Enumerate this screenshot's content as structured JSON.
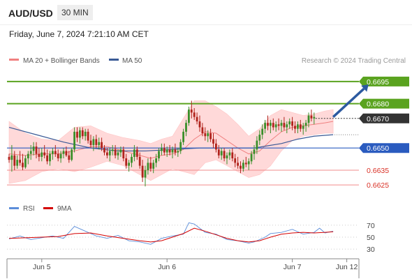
{
  "header": {
    "symbol": "AUD/USD",
    "timeframe": "30 MIN",
    "datetime": "Friday, June 7, 2024 7:21:10 AM CET",
    "credit": "Research © 2024 Trading Central"
  },
  "colors": {
    "resistance": "#5aa31f",
    "support": "#2a5bbf",
    "minor_support": "#f28b8b",
    "minor_support_text": "#d93025",
    "candle_bull": "#3a8f2a",
    "candle_bear": "#b0231c",
    "bollinger_fill": "#ffd9d9",
    "ma20": "#f08080",
    "ma50": "#3a5a96",
    "rsi": "#5b8dd9",
    "rsi_ma": "#d40000",
    "arrow": "#2c5aa0",
    "last_box": "#333333"
  },
  "chart_data": {
    "type": "candlestick",
    "legend": [
      "MA 20 + Bollinger Bands",
      "MA 50"
    ],
    "ylim": [
      0.6618,
      0.6702
    ],
    "last_price": 0.667,
    "levels": [
      {
        "value": 0.6695,
        "label": "0.6695",
        "kind": "resistance"
      },
      {
        "value": 0.668,
        "label": "0.6680",
        "kind": "resistance"
      },
      {
        "value": 0.665,
        "label": "0.6650",
        "kind": "support"
      },
      {
        "value": 0.6635,
        "label": "0.6635",
        "kind": "minor-support"
      },
      {
        "value": 0.6625,
        "label": "0.6625",
        "kind": "minor-support"
      }
    ],
    "last_label": "0.6670",
    "x_ticks": [
      "Jun 5",
      "Jun 6",
      "Jun 7",
      "Jun 12"
    ],
    "x_tick_index": [
      12,
      58,
      104,
      124
    ],
    "forecast_arrow": {
      "from_index": 119,
      "from": 0.6671,
      "to_index": 132,
      "to": 0.6693
    },
    "candles": [
      [
        0.6644,
        0.6646,
        0.664,
        0.6642
      ],
      [
        0.6642,
        0.6652,
        0.6634,
        0.6645
      ],
      [
        0.6645,
        0.6648,
        0.6635,
        0.6638
      ],
      [
        0.6638,
        0.6645,
        0.6636,
        0.6642
      ],
      [
        0.6642,
        0.6648,
        0.6638,
        0.664
      ],
      [
        0.664,
        0.6646,
        0.6635,
        0.6637
      ],
      [
        0.6637,
        0.6645,
        0.6636,
        0.6643
      ],
      [
        0.6643,
        0.6648,
        0.6639,
        0.6646
      ],
      [
        0.6646,
        0.6652,
        0.6642,
        0.6648
      ],
      [
        0.6648,
        0.6654,
        0.6645,
        0.6651
      ],
      [
        0.6651,
        0.6654,
        0.6643,
        0.6646
      ],
      [
        0.6646,
        0.665,
        0.6641,
        0.6644
      ],
      [
        0.6644,
        0.665,
        0.6641,
        0.6647
      ],
      [
        0.6647,
        0.6652,
        0.6643,
        0.6645
      ],
      [
        0.6645,
        0.6649,
        0.6639,
        0.6641
      ],
      [
        0.6641,
        0.6648,
        0.6638,
        0.6646
      ],
      [
        0.6646,
        0.665,
        0.6642,
        0.6648
      ],
      [
        0.6648,
        0.6652,
        0.6644,
        0.6646
      ],
      [
        0.6646,
        0.6649,
        0.6641,
        0.6643
      ],
      [
        0.6643,
        0.6648,
        0.664,
        0.6646
      ],
      [
        0.6646,
        0.665,
        0.6643,
        0.6648
      ],
      [
        0.6648,
        0.6651,
        0.6644,
        0.6645
      ],
      [
        0.6645,
        0.6648,
        0.664,
        0.6642
      ],
      [
        0.6642,
        0.665,
        0.6641,
        0.6649
      ],
      [
        0.6649,
        0.6664,
        0.6647,
        0.6661
      ],
      [
        0.6661,
        0.6664,
        0.6654,
        0.6657
      ],
      [
        0.6657,
        0.6664,
        0.6653,
        0.6662
      ],
      [
        0.6662,
        0.6664,
        0.6656,
        0.6658
      ],
      [
        0.6658,
        0.6663,
        0.6655,
        0.6661
      ],
      [
        0.6661,
        0.6663,
        0.6653,
        0.6655
      ],
      [
        0.6655,
        0.6659,
        0.665,
        0.6652
      ],
      [
        0.6652,
        0.6658,
        0.6648,
        0.6656
      ],
      [
        0.6656,
        0.6659,
        0.665,
        0.6652
      ],
      [
        0.6652,
        0.6657,
        0.6649,
        0.6654
      ],
      [
        0.6654,
        0.6657,
        0.6648,
        0.665
      ],
      [
        0.665,
        0.6652,
        0.6645,
        0.6647
      ],
      [
        0.6647,
        0.665,
        0.6643,
        0.6645
      ],
      [
        0.6645,
        0.665,
        0.6641,
        0.6648
      ],
      [
        0.6648,
        0.6652,
        0.6645,
        0.6649
      ],
      [
        0.6649,
        0.6652,
        0.6643,
        0.6645
      ],
      [
        0.6645,
        0.6649,
        0.6642,
        0.6647
      ],
      [
        0.6647,
        0.6651,
        0.6644,
        0.6649
      ],
      [
        0.6649,
        0.6651,
        0.6641,
        0.6643
      ],
      [
        0.6643,
        0.6646,
        0.6636,
        0.6638
      ],
      [
        0.6638,
        0.6642,
        0.6634,
        0.664
      ],
      [
        0.664,
        0.6646,
        0.6637,
        0.6644
      ],
      [
        0.6644,
        0.6652,
        0.6641,
        0.6649
      ],
      [
        0.6649,
        0.6651,
        0.6642,
        0.6644
      ],
      [
        0.6644,
        0.6647,
        0.6636,
        0.6638
      ],
      [
        0.6638,
        0.6642,
        0.6627,
        0.663
      ],
      [
        0.663,
        0.6638,
        0.6624,
        0.6635
      ],
      [
        0.6635,
        0.6643,
        0.6632,
        0.664
      ],
      [
        0.664,
        0.6644,
        0.6634,
        0.6636
      ],
      [
        0.6636,
        0.6642,
        0.6633,
        0.664
      ],
      [
        0.664,
        0.6646,
        0.6637,
        0.6643
      ],
      [
        0.6643,
        0.665,
        0.6641,
        0.6648
      ],
      [
        0.6648,
        0.6653,
        0.6645,
        0.665
      ],
      [
        0.665,
        0.6653,
        0.6645,
        0.6647
      ],
      [
        0.6647,
        0.6651,
        0.6644,
        0.6649
      ],
      [
        0.6649,
        0.6652,
        0.6645,
        0.6647
      ],
      [
        0.6647,
        0.6651,
        0.6643,
        0.6649
      ],
      [
        0.6649,
        0.6653,
        0.6645,
        0.6647
      ],
      [
        0.6647,
        0.665,
        0.6644,
        0.6648
      ],
      [
        0.6648,
        0.6656,
        0.6646,
        0.6654
      ],
      [
        0.6654,
        0.6663,
        0.6652,
        0.6661
      ],
      [
        0.6661,
        0.6669,
        0.6658,
        0.6667
      ],
      [
        0.6667,
        0.6678,
        0.6665,
        0.6676
      ],
      [
        0.6676,
        0.6682,
        0.667,
        0.6674
      ],
      [
        0.6674,
        0.6677,
        0.6669,
        0.6671
      ],
      [
        0.6671,
        0.6674,
        0.6666,
        0.6668
      ],
      [
        0.6668,
        0.6672,
        0.6661,
        0.6664
      ],
      [
        0.6664,
        0.6667,
        0.6658,
        0.666
      ],
      [
        0.666,
        0.6664,
        0.6655,
        0.6658
      ],
      [
        0.6658,
        0.6662,
        0.6654,
        0.666
      ],
      [
        0.666,
        0.6663,
        0.6654,
        0.6656
      ],
      [
        0.6656,
        0.666,
        0.665,
        0.6653
      ],
      [
        0.6653,
        0.6656,
        0.6647,
        0.6649
      ],
      [
        0.6649,
        0.6652,
        0.6643,
        0.6645
      ],
      [
        0.6645,
        0.665,
        0.6642,
        0.6648
      ],
      [
        0.6648,
        0.665,
        0.6641,
        0.6643
      ],
      [
        0.6643,
        0.6647,
        0.6639,
        0.6645
      ],
      [
        0.6645,
        0.6649,
        0.6642,
        0.6647
      ],
      [
        0.6647,
        0.665,
        0.6641,
        0.6643
      ],
      [
        0.6643,
        0.6646,
        0.6637,
        0.664
      ],
      [
        0.664,
        0.6644,
        0.6636,
        0.6638
      ],
      [
        0.6638,
        0.6641,
        0.6633,
        0.6636
      ],
      [
        0.6636,
        0.6642,
        0.6634,
        0.664
      ],
      [
        0.664,
        0.6644,
        0.6637,
        0.6639
      ],
      [
        0.6639,
        0.6643,
        0.6635,
        0.6641
      ],
      [
        0.6641,
        0.6648,
        0.6639,
        0.6646
      ],
      [
        0.6646,
        0.6652,
        0.6642,
        0.6649
      ],
      [
        0.6649,
        0.6658,
        0.6646,
        0.6655
      ],
      [
        0.6655,
        0.6662,
        0.6652,
        0.6659
      ],
      [
        0.6659,
        0.6666,
        0.6656,
        0.6663
      ],
      [
        0.6663,
        0.6669,
        0.666,
        0.6667
      ],
      [
        0.6667,
        0.6672,
        0.6662,
        0.6665
      ],
      [
        0.6665,
        0.6669,
        0.666,
        0.6667
      ],
      [
        0.6667,
        0.667,
        0.6662,
        0.6664
      ],
      [
        0.6664,
        0.6668,
        0.6661,
        0.6666
      ],
      [
        0.6666,
        0.667,
        0.6662,
        0.6665
      ],
      [
        0.6665,
        0.6669,
        0.6661,
        0.6667
      ],
      [
        0.6667,
        0.6671,
        0.6662,
        0.6664
      ],
      [
        0.6664,
        0.6668,
        0.666,
        0.6666
      ],
      [
        0.6666,
        0.667,
        0.6663,
        0.6668
      ],
      [
        0.6668,
        0.6671,
        0.6662,
        0.6665
      ],
      [
        0.6665,
        0.6668,
        0.666,
        0.6663
      ],
      [
        0.6663,
        0.6668,
        0.666,
        0.6666
      ],
      [
        0.6666,
        0.6669,
        0.6661,
        0.6663
      ],
      [
        0.6663,
        0.6667,
        0.6659,
        0.6665
      ],
      [
        0.6665,
        0.6669,
        0.6661,
        0.6667
      ],
      [
        0.6667,
        0.6674,
        0.6664,
        0.6672
      ],
      [
        0.6672,
        0.6676,
        0.6668,
        0.667
      ],
      [
        0.667,
        0.6674,
        0.6666,
        0.6671
      ]
    ],
    "ma20": [
      [
        0,
        0.6646
      ],
      [
        6,
        0.6645
      ],
      [
        12,
        0.6646
      ],
      [
        18,
        0.6646
      ],
      [
        24,
        0.6648
      ],
      [
        30,
        0.6651
      ],
      [
        36,
        0.6651
      ],
      [
        42,
        0.6648
      ],
      [
        48,
        0.6645
      ],
      [
        52,
        0.6643
      ],
      [
        56,
        0.6645
      ],
      [
        60,
        0.6646
      ],
      [
        64,
        0.6649
      ],
      [
        68,
        0.6656
      ],
      [
        72,
        0.6661
      ],
      [
        76,
        0.666
      ],
      [
        80,
        0.6655
      ],
      [
        84,
        0.665
      ],
      [
        88,
        0.6646
      ],
      [
        92,
        0.6648
      ],
      [
        96,
        0.6655
      ],
      [
        100,
        0.6661
      ],
      [
        104,
        0.6664
      ],
      [
        108,
        0.6665
      ],
      [
        112,
        0.6666
      ],
      [
        116,
        0.6667
      ],
      [
        119,
        0.6668
      ]
    ],
    "ma50": [
      [
        0,
        0.6664
      ],
      [
        10,
        0.6659
      ],
      [
        20,
        0.6654
      ],
      [
        30,
        0.665
      ],
      [
        40,
        0.6648
      ],
      [
        50,
        0.6648
      ],
      [
        60,
        0.6649
      ],
      [
        70,
        0.665
      ],
      [
        80,
        0.665
      ],
      [
        90,
        0.665
      ],
      [
        100,
        0.6653
      ],
      [
        106,
        0.6656
      ],
      [
        112,
        0.6658
      ],
      [
        119,
        0.6659
      ]
    ],
    "bb_upper": [
      [
        0,
        0.6668
      ],
      [
        6,
        0.666
      ],
      [
        12,
        0.6656
      ],
      [
        18,
        0.6655
      ],
      [
        24,
        0.6664
      ],
      [
        30,
        0.6665
      ],
      [
        36,
        0.666
      ],
      [
        42,
        0.6657
      ],
      [
        48,
        0.6655
      ],
      [
        52,
        0.6653
      ],
      [
        56,
        0.6656
      ],
      [
        60,
        0.6658
      ],
      [
        64,
        0.667
      ],
      [
        68,
        0.6682
      ],
      [
        72,
        0.6682
      ],
      [
        76,
        0.6678
      ],
      [
        80,
        0.6673
      ],
      [
        84,
        0.6666
      ],
      [
        88,
        0.6658
      ],
      [
        92,
        0.6663
      ],
      [
        96,
        0.6672
      ],
      [
        100,
        0.6676
      ],
      [
        104,
        0.6674
      ],
      [
        108,
        0.6672
      ],
      [
        112,
        0.6673
      ],
      [
        116,
        0.6675
      ],
      [
        119,
        0.6676
      ]
    ],
    "bb_lower": [
      [
        0,
        0.6626
      ],
      [
        6,
        0.6628
      ],
      [
        12,
        0.6634
      ],
      [
        18,
        0.6636
      ],
      [
        24,
        0.6634
      ],
      [
        30,
        0.6637
      ],
      [
        36,
        0.6641
      ],
      [
        42,
        0.6638
      ],
      [
        48,
        0.6632
      ],
      [
        52,
        0.6628
      ],
      [
        56,
        0.6632
      ],
      [
        60,
        0.6636
      ],
      [
        64,
        0.6634
      ],
      [
        68,
        0.6632
      ],
      [
        72,
        0.664
      ],
      [
        76,
        0.6642
      ],
      [
        80,
        0.6638
      ],
      [
        84,
        0.6634
      ],
      [
        88,
        0.663
      ],
      [
        92,
        0.6632
      ],
      [
        96,
        0.6638
      ],
      [
        100,
        0.6648
      ],
      [
        104,
        0.6655
      ],
      [
        108,
        0.6658
      ],
      [
        112,
        0.6659
      ],
      [
        116,
        0.666
      ],
      [
        119,
        0.666
      ]
    ],
    "rsi_panel": {
      "legend": [
        "RSI",
        "9MA"
      ],
      "ylim": [
        22,
        78
      ],
      "levels": [
        {
          "value": 70,
          "label": "70"
        },
        {
          "value": 50,
          "label": "50"
        },
        {
          "value": 30,
          "label": "30"
        }
      ],
      "rsi": [
        [
          0,
          47
        ],
        [
          4,
          52
        ],
        [
          8,
          46
        ],
        [
          12,
          49
        ],
        [
          16,
          52
        ],
        [
          20,
          48
        ],
        [
          24,
          68
        ],
        [
          28,
          60
        ],
        [
          32,
          52
        ],
        [
          36,
          48
        ],
        [
          40,
          53
        ],
        [
          44,
          44
        ],
        [
          48,
          42
        ],
        [
          52,
          38
        ],
        [
          56,
          48
        ],
        [
          60,
          52
        ],
        [
          64,
          55
        ],
        [
          66,
          74
        ],
        [
          68,
          72
        ],
        [
          72,
          58
        ],
        [
          76,
          55
        ],
        [
          80,
          46
        ],
        [
          84,
          44
        ],
        [
          88,
          40
        ],
        [
          90,
          42
        ],
        [
          94,
          50
        ],
        [
          96,
          56
        ],
        [
          100,
          58
        ],
        [
          104,
          63
        ],
        [
          108,
          55
        ],
        [
          112,
          58
        ],
        [
          114,
          65
        ],
        [
          116,
          57
        ],
        [
          119,
          60
        ]
      ],
      "rsi_ma": [
        [
          0,
          48
        ],
        [
          6,
          49
        ],
        [
          12,
          50
        ],
        [
          18,
          51
        ],
        [
          24,
          56
        ],
        [
          30,
          57
        ],
        [
          36,
          52
        ],
        [
          42,
          48
        ],
        [
          48,
          44
        ],
        [
          52,
          42
        ],
        [
          56,
          44
        ],
        [
          60,
          50
        ],
        [
          64,
          56
        ],
        [
          68,
          65
        ],
        [
          72,
          60
        ],
        [
          76,
          54
        ],
        [
          80,
          48
        ],
        [
          84,
          44
        ],
        [
          88,
          42
        ],
        [
          92,
          44
        ],
        [
          96,
          50
        ],
        [
          100,
          55
        ],
        [
          104,
          57
        ],
        [
          108,
          58
        ],
        [
          112,
          57
        ],
        [
          116,
          58
        ],
        [
          119,
          59
        ]
      ]
    }
  }
}
